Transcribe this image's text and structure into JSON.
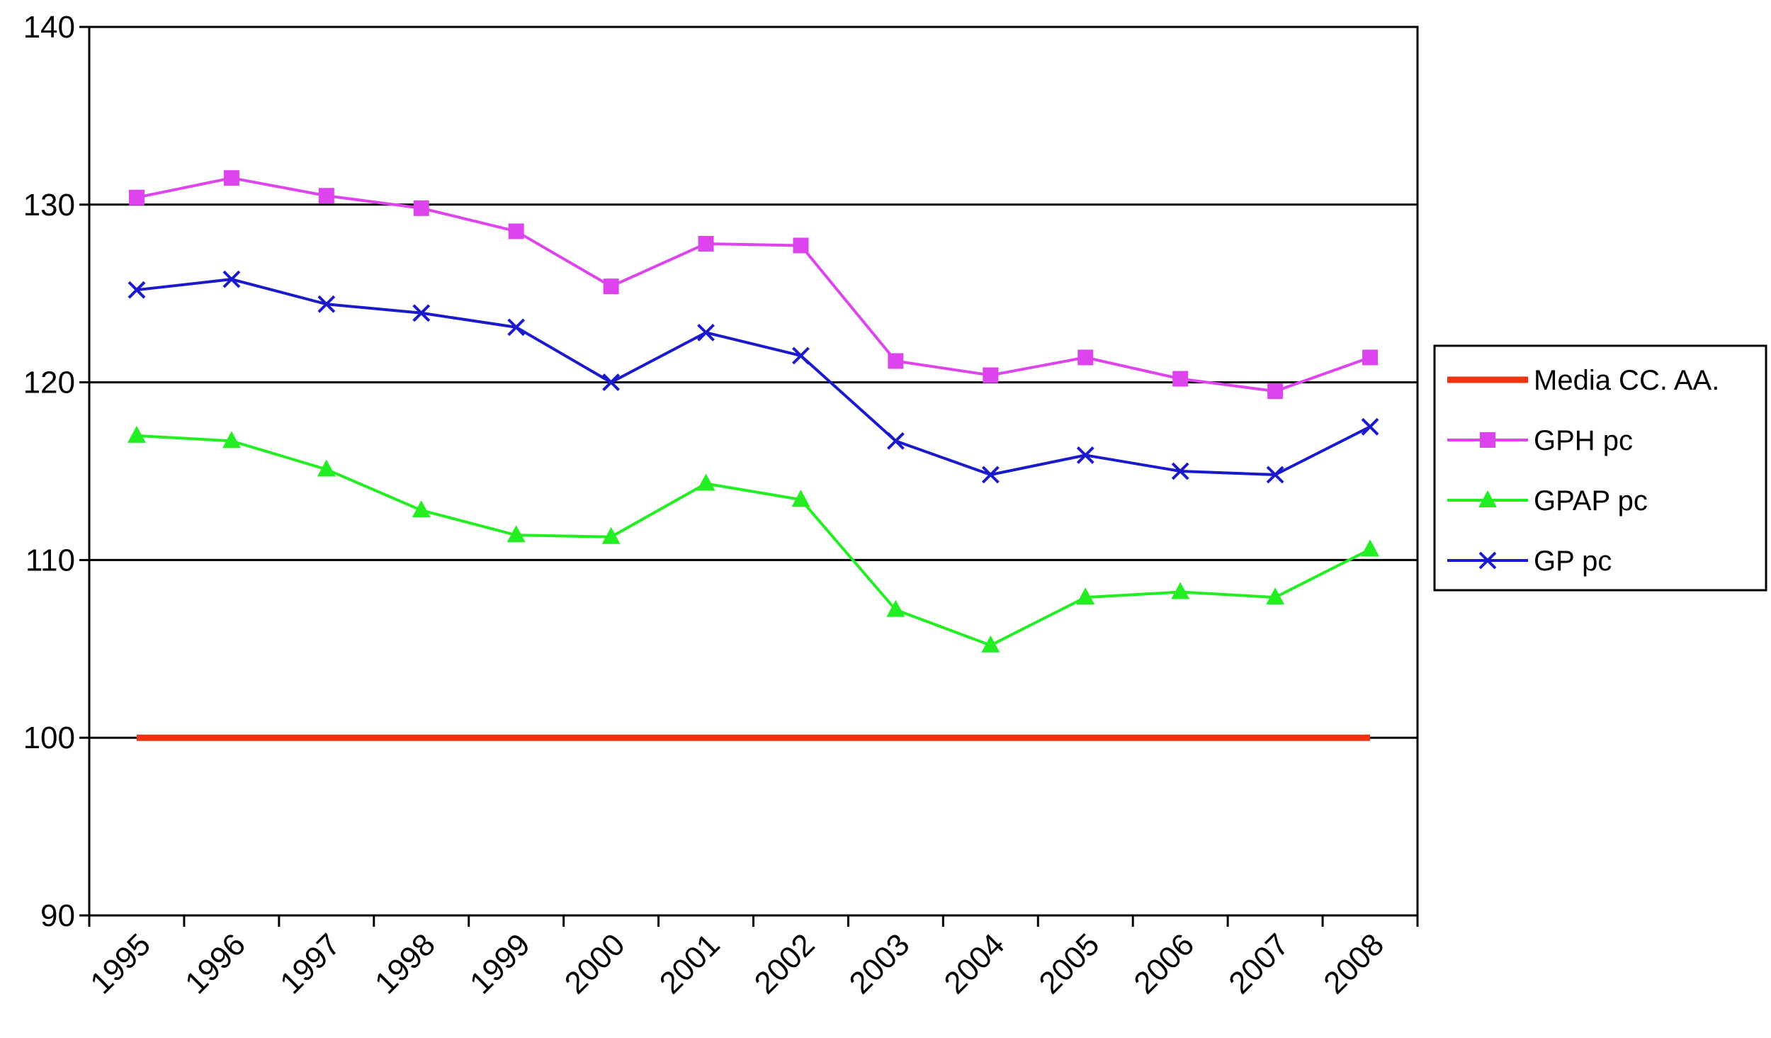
{
  "chart_data": {
    "type": "line",
    "title": "",
    "xlabel": "",
    "ylabel": "",
    "categories": [
      "1995",
      "1996",
      "1997",
      "1998",
      "1999",
      "2000",
      "2001",
      "2002",
      "2003",
      "2004",
      "2005",
      "2006",
      "2007",
      "2008"
    ],
    "ylim": [
      90,
      140
    ],
    "yticks": [
      "90",
      "100",
      "110",
      "120",
      "130",
      "140"
    ],
    "grid": "horizontal",
    "legend_position": "right",
    "series": [
      {
        "name": "Media CC. AA.",
        "color": "#ee3311",
        "marker": "none",
        "values": [
          100,
          100,
          100,
          100,
          100,
          100,
          100,
          100,
          100,
          100,
          100,
          100,
          100,
          100
        ]
      },
      {
        "name": "GPH pc",
        "color": "#dd44ee",
        "marker": "square",
        "values": [
          130.4,
          131.5,
          130.5,
          129.8,
          128.5,
          125.4,
          127.8,
          127.7,
          121.2,
          120.4,
          121.4,
          120.2,
          119.5,
          121.4
        ]
      },
      {
        "name": "GPAP pc",
        "color": "#22ee22",
        "marker": "triangle",
        "values": [
          117.0,
          116.7,
          115.1,
          112.8,
          111.4,
          111.3,
          114.3,
          113.4,
          107.2,
          105.2,
          107.9,
          108.2,
          107.9,
          110.6
        ]
      },
      {
        "name": "GP pc",
        "color": "#1a1acc",
        "marker": "x",
        "values": [
          125.2,
          125.8,
          124.4,
          123.9,
          123.1,
          120.0,
          122.8,
          121.5,
          116.7,
          114.8,
          115.9,
          115.0,
          114.8,
          117.5
        ]
      }
    ]
  }
}
